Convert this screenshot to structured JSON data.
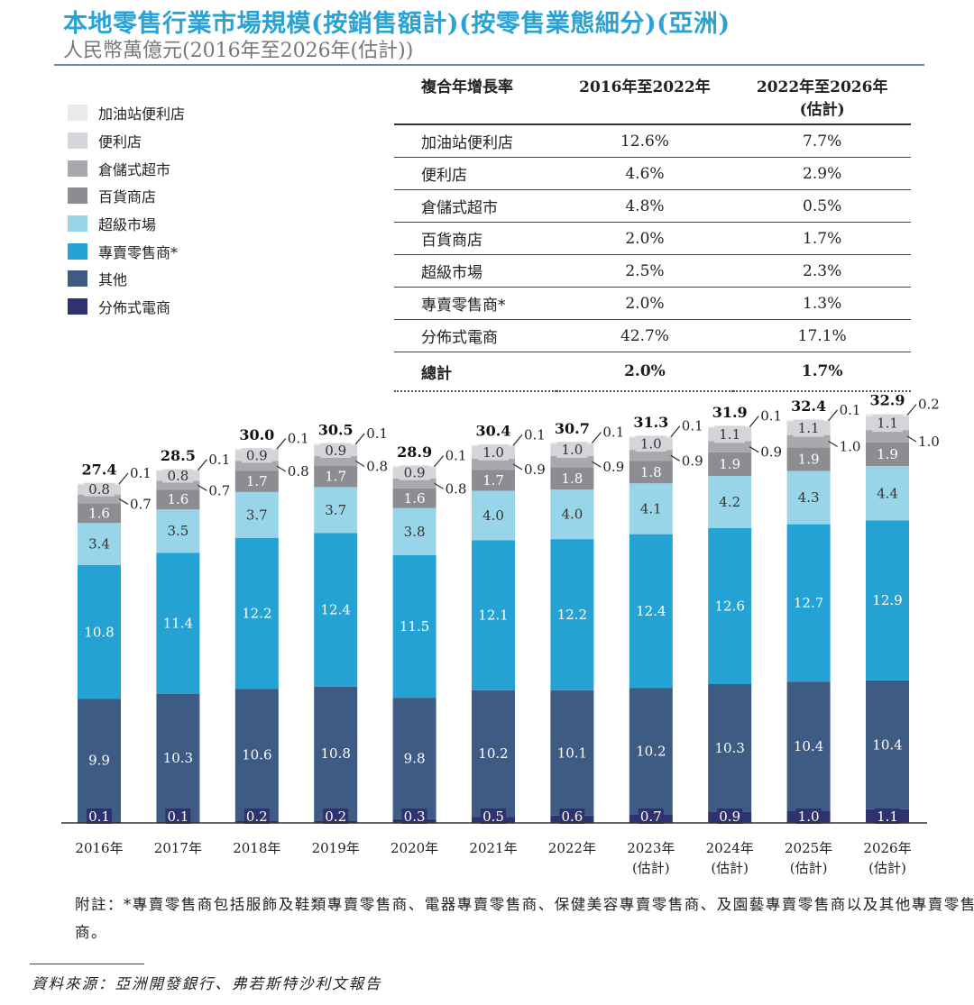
{
  "header": {
    "title": "本地零售行業市場規模(按銷售額計)(按零售業態細分)(亞洲)",
    "subtitle": "人民幣萬億元(2016年至2026年(估計))"
  },
  "legend": [
    {
      "label": "加油站便利店",
      "color": "#e9eaec"
    },
    {
      "label": "便利店",
      "color": "#d4d5d9"
    },
    {
      "label": "倉儲式超市",
      "color": "#a7a9ad"
    },
    {
      "label": "百貨商店",
      "color": "#8b8d91"
    },
    {
      "label": "超級市場",
      "color": "#98d5e8"
    },
    {
      "label": "專賣零售商*",
      "color": "#23a2d3"
    },
    {
      "label": "其他",
      "color": "#3e5b83"
    },
    {
      "label": "分佈式電商",
      "color": "#2e3270"
    }
  ],
  "cagr_table": {
    "headers": [
      "複合年增長率",
      "2016年至2022年",
      "2022年至2026年",
      "(估計)"
    ],
    "rows": [
      [
        "加油站便利店",
        "12.6%",
        "7.7%"
      ],
      [
        "便利店",
        "4.6%",
        "2.9%"
      ],
      [
        "倉儲式超市",
        "4.8%",
        "0.5%"
      ],
      [
        "百貨商店",
        "2.0%",
        "1.7%"
      ],
      [
        "超級市場",
        "2.5%",
        "2.3%"
      ],
      [
        "專賣零售商*",
        "2.0%",
        "1.3%"
      ],
      [
        "分佈式電商",
        "42.7%",
        "17.1%"
      ]
    ],
    "total": [
      "總計",
      "2.0%",
      "1.7%"
    ]
  },
  "chart_data": {
    "type": "bar",
    "stacked": true,
    "title": "本地零售行業市場規模(按銷售額計)(按零售業態細分)(亞洲)",
    "ylabel": "人民幣萬億元",
    "categories": [
      "2016年",
      "2017年",
      "2018年",
      "2019年",
      "2020年",
      "2021年",
      "2022年",
      "2023年",
      "2024年",
      "2025年",
      "2026年"
    ],
    "category_sublabels": [
      "",
      "",
      "",
      "",
      "",
      "",
      "",
      "(估計)",
      "(估計)",
      "(估計)",
      "(估計)"
    ],
    "series": [
      {
        "name": "分佈式電商",
        "values": [
          0.1,
          0.1,
          0.2,
          0.2,
          0.3,
          0.5,
          0.6,
          0.7,
          0.9,
          1.0,
          1.1
        ]
      },
      {
        "name": "其他",
        "values": [
          9.9,
          10.3,
          10.6,
          10.8,
          9.8,
          10.2,
          10.1,
          10.2,
          10.3,
          10.4,
          10.4
        ]
      },
      {
        "name": "專賣零售商*",
        "values": [
          10.8,
          11.4,
          12.2,
          12.4,
          11.5,
          12.1,
          12.2,
          12.4,
          12.6,
          12.7,
          12.9
        ]
      },
      {
        "name": "超級市場",
        "values": [
          3.4,
          3.5,
          3.7,
          3.7,
          3.8,
          4.0,
          4.0,
          4.1,
          4.2,
          4.3,
          4.4
        ]
      },
      {
        "name": "百貨商店",
        "values": [
          1.6,
          1.6,
          1.7,
          1.7,
          1.6,
          1.7,
          1.8,
          1.8,
          1.9,
          1.9,
          1.9
        ]
      },
      {
        "name": "倉儲式超市",
        "values": [
          0.7,
          0.7,
          0.8,
          0.8,
          0.8,
          0.9,
          0.9,
          0.9,
          0.9,
          1.0,
          1.0
        ]
      },
      {
        "name": "便利店",
        "values": [
          0.8,
          0.8,
          0.9,
          0.9,
          0.9,
          1.0,
          1.0,
          1.0,
          1.1,
          1.1,
          1.1
        ]
      },
      {
        "name": "加油站便利店",
        "values": [
          0.1,
          0.1,
          0.1,
          0.1,
          0.1,
          0.1,
          0.1,
          0.1,
          0.1,
          0.1,
          0.2
        ]
      }
    ],
    "totals": [
      27.4,
      28.5,
      30.0,
      30.5,
      28.9,
      30.4,
      30.7,
      31.3,
      31.9,
      32.4,
      32.9
    ],
    "grid": false,
    "legend": "top-left"
  },
  "footnote": "附註：*專賣零售商包括服飾及鞋類專賣零售商、電器專賣零售商、保健美容專賣零售商、及園藝專賣零售商以及其他專賣零售商。",
  "source": "資料來源：亞洲開發銀行、弗若斯特沙利文報告"
}
